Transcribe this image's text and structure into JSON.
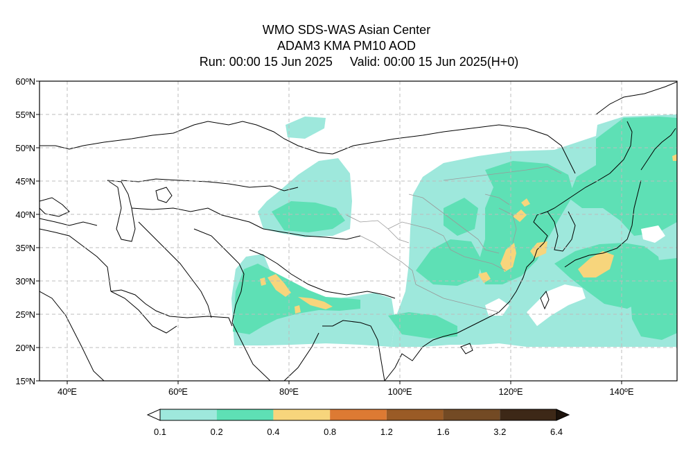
{
  "title": {
    "line1": "WMO SDS-WAS Asian Center",
    "line2": "ADAM3 KMA PM10 AOD",
    "line3": "Run: 00:00 15 Jun 2025     Valid: 00:00 15 Jun 2025(H+0)"
  },
  "map": {
    "lon_range": [
      35,
      150
    ],
    "lat_range": [
      15,
      60
    ],
    "lon_ticks": [
      {
        "value": 40,
        "label": "40ºE"
      },
      {
        "value": 60,
        "label": "60ºE"
      },
      {
        "value": 80,
        "label": "80ºE"
      },
      {
        "value": 100,
        "label": "100ºE"
      },
      {
        "value": 120,
        "label": "120ºE"
      },
      {
        "value": 140,
        "label": "140ºE"
      }
    ],
    "lat_ticks": [
      {
        "value": 60,
        "label": "60ºN"
      },
      {
        "value": 55,
        "label": "55ºN"
      },
      {
        "value": 50,
        "label": "50ºN"
      },
      {
        "value": 45,
        "label": "45ºN"
      },
      {
        "value": 40,
        "label": "40ºN"
      },
      {
        "value": 35,
        "label": "35ºN"
      },
      {
        "value": 30,
        "label": "30ºN"
      },
      {
        "value": 25,
        "label": "25ºN"
      },
      {
        "value": 20,
        "label": "20ºN"
      },
      {
        "value": 15,
        "label": "15ºN"
      }
    ],
    "grid": true
  },
  "colorbar": {
    "levels": [
      "0.1",
      "0.2",
      "0.4",
      "0.8",
      "1.2",
      "1.6",
      "3.2",
      "6.4"
    ],
    "colors": [
      "#9ee8dc",
      "#5ee0b5",
      "#f7d57c",
      "#dd7a33",
      "#9a5b26",
      "#734a24",
      "#3d2817"
    ],
    "under_color": "#ffffff",
    "over_color": "#1d130b"
  }
}
